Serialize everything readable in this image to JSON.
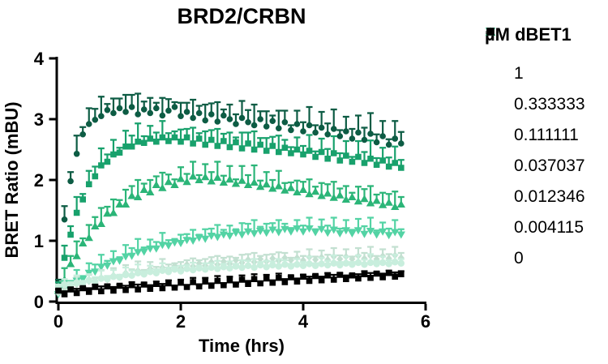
{
  "title": "BRD2/CRBN",
  "axes": {
    "x_label": "Time (hrs)",
    "y_label": "BRET Ratio (mBU)",
    "x_tick_labels": [
      "0",
      "2",
      "4",
      "6"
    ],
    "y_tick_labels": [
      "0",
      "1",
      "2",
      "3",
      "4"
    ]
  },
  "legend": {
    "title": "µM dBET1",
    "labels": [
      "1",
      "0.333333",
      "0.111111",
      "0.037037",
      "0.012346",
      "0.004115",
      "0"
    ]
  },
  "colors": {
    "axis": "#000000",
    "text": "#000000",
    "background": "#ffffff"
  },
  "chart_data": {
    "type": "scatter",
    "title": "BRD2/CRBN",
    "xlabel": "Time (hrs)",
    "ylabel": "BRET Ratio (mBU)",
    "xlim": [
      0,
      6
    ],
    "ylim": [
      0,
      4
    ],
    "xticks": [
      0,
      2,
      4,
      6
    ],
    "yticks": [
      0,
      1,
      2,
      3,
      4
    ],
    "grid": false,
    "legend_title": "µM dBET1",
    "legend_position": "right",
    "error_bars": "upward SD",
    "x_start": 0,
    "x_step": 0.1,
    "n_points": 57,
    "series": [
      {
        "name": "1",
        "marker": "circle",
        "size": 7.6,
        "color": "#0D5C44",
        "y": [
          0.28,
          1.35,
          1.98,
          2.43,
          2.75,
          2.92,
          2.99,
          3.05,
          3.15,
          3.1,
          3.18,
          3.12,
          3.2,
          3.08,
          3.16,
          3.1,
          3.18,
          3.06,
          3.14,
          3.2,
          3.05,
          3.12,
          3.02,
          3.1,
          2.98,
          3.08,
          2.96,
          3.06,
          3.0,
          2.92,
          3.02,
          2.95,
          2.9,
          3.0,
          2.88,
          2.97,
          2.85,
          2.95,
          2.82,
          2.92,
          2.8,
          2.9,
          2.78,
          2.86,
          2.75,
          2.84,
          2.72,
          2.8,
          2.68,
          2.78,
          2.66,
          2.76,
          2.62,
          2.72,
          2.58,
          2.68,
          2.6
        ],
        "err": [
          0.08,
          0.22,
          0.15,
          0.3,
          0.12,
          0.26,
          0.18,
          0.32,
          0.1,
          0.24,
          0.16,
          0.28,
          0.2,
          0.34,
          0.13,
          0.25,
          0.09,
          0.29,
          0.19
        ]
      },
      {
        "name": "0.333333",
        "marker": "square",
        "size": 7.6,
        "color": "#18A16C",
        "y": [
          0.22,
          0.72,
          1.1,
          1.46,
          1.68,
          1.93,
          2.06,
          2.24,
          2.3,
          2.42,
          2.45,
          2.55,
          2.55,
          2.63,
          2.61,
          2.68,
          2.63,
          2.7,
          2.64,
          2.7,
          2.63,
          2.7,
          2.6,
          2.68,
          2.58,
          2.66,
          2.56,
          2.64,
          2.54,
          2.62,
          2.52,
          2.6,
          2.5,
          2.58,
          2.48,
          2.56,
          2.46,
          2.53,
          2.44,
          2.5,
          2.42,
          2.48,
          2.38,
          2.46,
          2.35,
          2.44,
          2.32,
          2.4,
          2.3,
          2.38,
          2.28,
          2.35,
          2.25,
          2.32,
          2.22,
          2.28,
          2.2
        ],
        "err": [
          0.1,
          0.2,
          0.14,
          0.26,
          0.09,
          0.22,
          0.16,
          0.28,
          0.12,
          0.24,
          0.08,
          0.26,
          0.18,
          0.3,
          0.11,
          0.21,
          0.15,
          0.27,
          0.13
        ]
      },
      {
        "name": "0.111111",
        "marker": "triangle-up",
        "size": 9,
        "color": "#2BB578",
        "y": [
          0.18,
          0.36,
          0.62,
          0.75,
          0.96,
          1.05,
          1.24,
          1.28,
          1.45,
          1.46,
          1.6,
          1.6,
          1.74,
          1.72,
          1.84,
          1.8,
          1.92,
          1.87,
          1.97,
          1.92,
          2.02,
          1.97,
          2.06,
          2.0,
          2.05,
          1.98,
          2.04,
          1.96,
          2.01,
          1.94,
          1.99,
          1.92,
          1.96,
          1.89,
          1.93,
          1.86,
          1.9,
          1.83,
          1.87,
          1.8,
          1.84,
          1.77,
          1.81,
          1.74,
          1.78,
          1.71,
          1.75,
          1.68,
          1.72,
          1.65,
          1.69,
          1.62,
          1.66,
          1.59,
          1.63,
          1.56,
          1.6
        ],
        "err": [
          0.09,
          0.19,
          0.13,
          0.24,
          0.08,
          0.21,
          0.15,
          0.26,
          0.11,
          0.22,
          0.07,
          0.24,
          0.16,
          0.28,
          0.1,
          0.2,
          0.14,
          0.25,
          0.12
        ]
      },
      {
        "name": "0.037037",
        "marker": "triangle-down",
        "size": 9,
        "color": "#53D3A4",
        "y": [
          0.12,
          0.2,
          0.24,
          0.34,
          0.37,
          0.47,
          0.49,
          0.57,
          0.59,
          0.66,
          0.67,
          0.74,
          0.75,
          0.81,
          0.82,
          0.87,
          0.87,
          0.93,
          0.92,
          0.97,
          0.96,
          1.01,
          1.0,
          1.05,
          1.03,
          1.08,
          1.06,
          1.1,
          1.08,
          1.13,
          1.1,
          1.15,
          1.12,
          1.16,
          1.13,
          1.18,
          1.14,
          1.19,
          1.15,
          1.2,
          1.15,
          1.2,
          1.14,
          1.19,
          1.13,
          1.18,
          1.12,
          1.17,
          1.12,
          1.17,
          1.11,
          1.16,
          1.1,
          1.15,
          1.09,
          1.14,
          1.1
        ],
        "err": [
          0.06,
          0.14,
          0.1,
          0.18,
          0.05,
          0.16,
          0.12,
          0.2,
          0.08,
          0.17,
          0.06,
          0.19,
          0.13,
          0.22,
          0.07,
          0.15,
          0.11,
          0.2,
          0.09
        ]
      },
      {
        "name": "0.012346",
        "marker": "diamond",
        "size": 7.6,
        "color": "#C3E0D1",
        "y": [
          0.14,
          0.21,
          0.2,
          0.28,
          0.26,
          0.33,
          0.31,
          0.38,
          0.36,
          0.43,
          0.4,
          0.47,
          0.44,
          0.51,
          0.47,
          0.54,
          0.5,
          0.56,
          0.53,
          0.59,
          0.55,
          0.61,
          0.58,
          0.63,
          0.59,
          0.65,
          0.61,
          0.66,
          0.62,
          0.68,
          0.64,
          0.69,
          0.65,
          0.7,
          0.66,
          0.71,
          0.67,
          0.72,
          0.68,
          0.72,
          0.68,
          0.73,
          0.69,
          0.73,
          0.69,
          0.74,
          0.7,
          0.74,
          0.7,
          0.75,
          0.71,
          0.75,
          0.7,
          0.75,
          0.71,
          0.76,
          0.72
        ],
        "err": [
          0.04,
          0.1,
          0.07,
          0.13,
          0.05,
          0.11,
          0.08,
          0.14,
          0.06,
          0.12,
          0.04,
          0.13,
          0.09,
          0.15,
          0.05,
          0.11,
          0.07,
          0.14,
          0.08
        ]
      },
      {
        "name": "0.004115",
        "marker": "circle",
        "size": 8.4,
        "color": "#C8EEDD",
        "y": [
          0.24,
          0.28,
          0.26,
          0.31,
          0.3,
          0.35,
          0.33,
          0.38,
          0.37,
          0.41,
          0.4,
          0.44,
          0.43,
          0.47,
          0.45,
          0.49,
          0.47,
          0.51,
          0.49,
          0.53,
          0.5,
          0.54,
          0.52,
          0.55,
          0.53,
          0.56,
          0.54,
          0.57,
          0.55,
          0.58,
          0.56,
          0.59,
          0.56,
          0.6,
          0.57,
          0.6,
          0.58,
          0.61,
          0.58,
          0.61,
          0.59,
          0.62,
          0.59,
          0.62,
          0.6,
          0.63,
          0.6,
          0.63,
          0.61,
          0.64,
          0.61,
          0.64,
          0.62,
          0.64,
          0.62,
          0.65,
          0.63
        ],
        "err": [
          0.04,
          0.09,
          0.06,
          0.12,
          0.04,
          0.1,
          0.07,
          0.13,
          0.05,
          0.11,
          0.04,
          0.12,
          0.08,
          0.14,
          0.05,
          0.1,
          0.06,
          0.12,
          0.07
        ]
      },
      {
        "name": "0",
        "marker": "square",
        "size": 7.6,
        "color": "#000000",
        "y": [
          0.18,
          0.12,
          0.2,
          0.14,
          0.22,
          0.16,
          0.24,
          0.17,
          0.25,
          0.18,
          0.26,
          0.19,
          0.27,
          0.2,
          0.28,
          0.21,
          0.29,
          0.22,
          0.3,
          0.23,
          0.31,
          0.24,
          0.32,
          0.25,
          0.33,
          0.26,
          0.34,
          0.27,
          0.35,
          0.28,
          0.36,
          0.29,
          0.37,
          0.3,
          0.38,
          0.31,
          0.39,
          0.32,
          0.4,
          0.33,
          0.41,
          0.34,
          0.42,
          0.35,
          0.43,
          0.36,
          0.44,
          0.37,
          0.43,
          0.38,
          0.45,
          0.39,
          0.46,
          0.4,
          0.47,
          0.41,
          0.45
        ],
        "err": [
          0.02,
          0.05,
          0.03,
          0.07,
          0.02,
          0.06,
          0.04,
          0.08,
          0.03,
          0.06,
          0.02,
          0.07,
          0.05,
          0.08,
          0.03,
          0.06,
          0.04,
          0.07,
          0.05
        ]
      }
    ]
  }
}
